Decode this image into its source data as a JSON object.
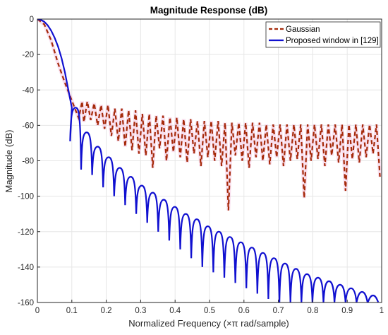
{
  "chart_data": {
    "type": "line",
    "title": "Magnitude Response (dB)",
    "xlabel": "Normalized Frequency (×π rad/sample)",
    "ylabel": "Magnitude (dB)",
    "xlim": [
      0,
      1
    ],
    "ylim": [
      -160,
      0
    ],
    "xticks": [
      0,
      0.1,
      0.2,
      0.3,
      0.4,
      0.5,
      0.6,
      0.7,
      0.8,
      0.9,
      1
    ],
    "yticks": [
      0,
      -20,
      -40,
      -60,
      -80,
      -100,
      -120,
      -140,
      -160
    ],
    "grid": true,
    "legend_position": "top-right",
    "series": [
      {
        "name": "Gaussian",
        "color": "#a52a0a",
        "dash": "dashed",
        "peaks": [
          [
            0.0,
            0
          ],
          [
            0.02,
            -3
          ],
          [
            0.04,
            -12
          ],
          [
            0.06,
            -25
          ],
          [
            0.08,
            -36
          ],
          [
            0.1,
            -46
          ],
          [
            0.14,
            -45
          ],
          [
            0.16,
            -46
          ],
          [
            0.2,
            -47
          ],
          [
            0.24,
            -49
          ],
          [
            0.28,
            -50
          ],
          [
            0.32,
            -52
          ],
          [
            0.36,
            -53
          ],
          [
            0.4,
            -54
          ],
          [
            0.44,
            -55
          ],
          [
            0.48,
            -56
          ],
          [
            0.52,
            -56
          ],
          [
            0.56,
            -57
          ],
          [
            0.6,
            -57
          ],
          [
            0.64,
            -57
          ],
          [
            0.68,
            -58
          ],
          [
            0.72,
            -58
          ],
          [
            0.76,
            -58
          ],
          [
            0.8,
            -58
          ],
          [
            0.84,
            -58
          ],
          [
            0.88,
            -58
          ],
          [
            0.92,
            -58
          ],
          [
            0.96,
            -58
          ],
          [
            1.0,
            -58
          ]
        ],
        "nulls": [
          [
            0.12,
            -56
          ],
          [
            0.135,
            -58
          ],
          [
            0.155,
            -57
          ],
          [
            0.175,
            -60
          ],
          [
            0.195,
            -62
          ],
          [
            0.215,
            -66
          ],
          [
            0.235,
            -69
          ],
          [
            0.255,
            -72
          ],
          [
            0.275,
            -74
          ],
          [
            0.295,
            -76
          ],
          [
            0.315,
            -77
          ],
          [
            0.335,
            -84
          ],
          [
            0.355,
            -73
          ],
          [
            0.375,
            -80
          ],
          [
            0.395,
            -75
          ],
          [
            0.415,
            -78
          ],
          [
            0.435,
            -81
          ],
          [
            0.455,
            -76
          ],
          [
            0.475,
            -83
          ],
          [
            0.495,
            -78
          ],
          [
            0.515,
            -80
          ],
          [
            0.535,
            -83
          ],
          [
            0.555,
            -108
          ],
          [
            0.575,
            -77
          ],
          [
            0.595,
            -80
          ],
          [
            0.615,
            -84
          ],
          [
            0.635,
            -78
          ],
          [
            0.655,
            -80
          ],
          [
            0.675,
            -82
          ],
          [
            0.695,
            -78
          ],
          [
            0.715,
            -83
          ],
          [
            0.735,
            -80
          ],
          [
            0.755,
            -79
          ],
          [
            0.775,
            -101
          ],
          [
            0.795,
            -80
          ],
          [
            0.815,
            -79
          ],
          [
            0.835,
            -83
          ],
          [
            0.855,
            -77
          ],
          [
            0.875,
            -81
          ],
          [
            0.895,
            -97
          ],
          [
            0.915,
            -79
          ],
          [
            0.935,
            -81
          ],
          [
            0.955,
            -78
          ],
          [
            0.975,
            -76
          ],
          [
            0.995,
            -89
          ]
        ]
      },
      {
        "name": "Proposed window in [129]",
        "color": "#1010d0",
        "dash": "solid",
        "mainlobe": [
          [
            0.0,
            0
          ],
          [
            0.01,
            -0.4
          ],
          [
            0.02,
            -1.5
          ],
          [
            0.03,
            -3.5
          ],
          [
            0.04,
            -6.5
          ],
          [
            0.05,
            -10.5
          ],
          [
            0.06,
            -15.5
          ],
          [
            0.07,
            -22
          ],
          [
            0.08,
            -30
          ],
          [
            0.09,
            -40
          ],
          [
            0.1,
            -50
          ]
        ],
        "nulls": [
          0.095,
          0.127,
          0.159,
          0.191,
          0.223,
          0.255,
          0.287,
          0.319,
          0.351,
          0.383,
          0.415,
          0.447,
          0.479,
          0.511,
          0.543,
          0.575,
          0.607,
          0.639,
          0.671,
          0.703,
          0.735,
          0.767,
          0.799,
          0.831,
          0.863,
          0.895,
          0.927,
          0.959,
          0.991
        ],
        "null_depths": [
          -69,
          -85,
          -88,
          -95,
          -100,
          -105,
          -110,
          -115,
          -120,
          -125,
          -130,
          -135,
          -140,
          -143,
          -146,
          -149,
          -152,
          -155,
          -158,
          -160,
          -160,
          -160,
          -160,
          -160,
          -160,
          -160,
          -160,
          -160,
          -160
        ],
        "sidelobe_peaks": [
          [
            0.111,
            -50
          ],
          [
            0.143,
            -64
          ],
          [
            0.175,
            -72
          ],
          [
            0.207,
            -78
          ],
          [
            0.239,
            -84
          ],
          [
            0.271,
            -89
          ],
          [
            0.303,
            -94
          ],
          [
            0.335,
            -98
          ],
          [
            0.367,
            -102
          ],
          [
            0.399,
            -106
          ],
          [
            0.431,
            -110
          ],
          [
            0.463,
            -113
          ],
          [
            0.495,
            -117
          ],
          [
            0.527,
            -120
          ],
          [
            0.559,
            -123
          ],
          [
            0.591,
            -126
          ],
          [
            0.623,
            -129
          ],
          [
            0.655,
            -132
          ],
          [
            0.687,
            -135
          ],
          [
            0.719,
            -138
          ],
          [
            0.751,
            -141
          ],
          [
            0.783,
            -144
          ],
          [
            0.815,
            -146
          ],
          [
            0.847,
            -148
          ],
          [
            0.879,
            -150
          ],
          [
            0.911,
            -152
          ],
          [
            0.943,
            -154
          ],
          [
            0.975,
            -156
          ]
        ]
      }
    ]
  }
}
